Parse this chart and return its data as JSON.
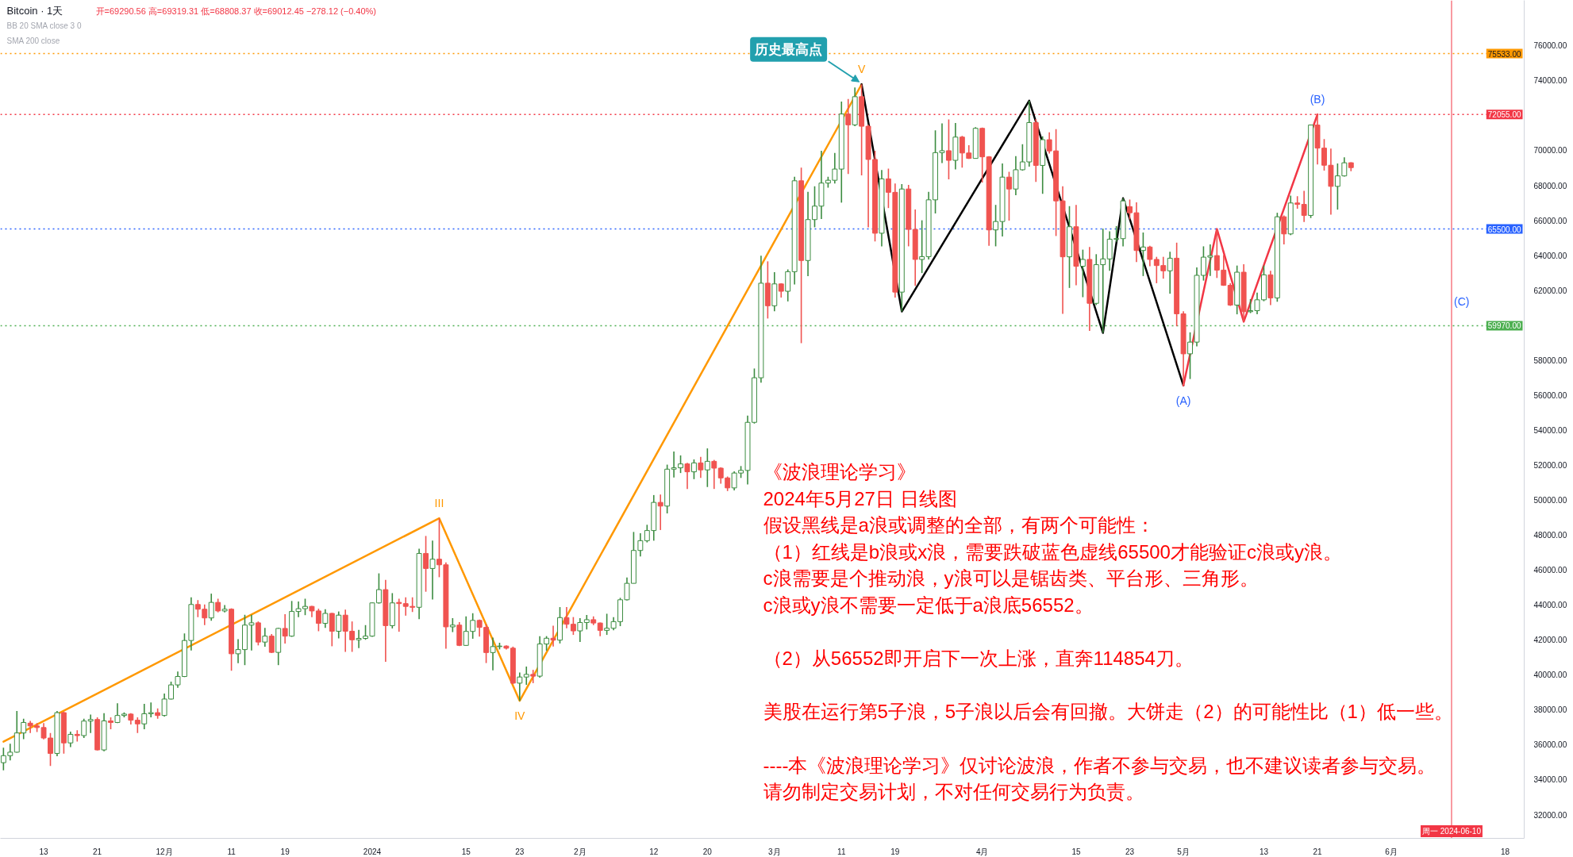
{
  "chart_data": {
    "type": "candlestick",
    "title": "Bitcoin · 1天",
    "subtitle": "开=69290.56 高=69319.31 低=68808.37 收=69012.45 −278.12 (−0.40%)",
    "x": [
      "2023-11-07",
      "2023-11-08",
      "2023-11-09",
      "2023-11-10",
      "2023-11-11",
      "2023-11-12",
      "2023-11-13",
      "2023-11-14",
      "2023-11-15",
      "2023-11-16",
      "2023-11-17",
      "2023-11-18",
      "2023-11-19",
      "2023-11-20",
      "2023-11-21",
      "2023-11-22",
      "2023-11-23",
      "2023-11-24",
      "2023-11-25",
      "2023-11-26",
      "2023-11-27",
      "2023-11-28",
      "2023-11-29",
      "2023-11-30",
      "2023-12-01",
      "2023-12-02",
      "2023-12-03",
      "2023-12-04",
      "2023-12-05",
      "2023-12-06",
      "2023-12-07",
      "2023-12-08",
      "2023-12-09",
      "2023-12-10",
      "2023-12-11",
      "2023-12-12",
      "2023-12-13",
      "2023-12-14",
      "2023-12-15",
      "2023-12-16",
      "2023-12-17",
      "2023-12-18",
      "2023-12-19",
      "2023-12-20",
      "2023-12-21",
      "2023-12-22",
      "2023-12-23",
      "2023-12-24",
      "2023-12-25",
      "2023-12-26",
      "2023-12-27",
      "2023-12-28",
      "2023-12-29",
      "2023-12-30",
      "2023-12-31",
      "2024-01-01",
      "2024-01-02",
      "2024-01-03",
      "2024-01-04",
      "2024-01-05",
      "2024-01-06",
      "2024-01-07",
      "2024-01-08",
      "2024-01-09",
      "2024-01-10",
      "2024-01-11",
      "2024-01-12",
      "2024-01-13",
      "2024-01-14",
      "2024-01-15",
      "2024-01-16",
      "2024-01-17",
      "2024-01-18",
      "2024-01-19",
      "2024-01-20",
      "2024-01-21",
      "2024-01-22",
      "2024-01-23",
      "2024-01-24",
      "2024-01-25",
      "2024-01-26",
      "2024-01-27",
      "2024-01-28",
      "2024-01-29",
      "2024-01-30",
      "2024-01-31",
      "2024-02-01",
      "2024-02-02",
      "2024-02-03",
      "2024-02-04",
      "2024-02-05",
      "2024-02-06",
      "2024-02-07",
      "2024-02-08",
      "2024-02-09",
      "2024-02-10",
      "2024-02-11",
      "2024-02-12",
      "2024-02-13",
      "2024-02-14",
      "2024-02-15",
      "2024-02-16",
      "2024-02-17",
      "2024-02-18",
      "2024-02-19",
      "2024-02-20",
      "2024-02-21",
      "2024-02-22",
      "2024-02-23",
      "2024-02-24",
      "2024-02-25",
      "2024-02-26",
      "2024-02-27",
      "2024-02-28",
      "2024-02-29",
      "2024-03-01",
      "2024-03-02",
      "2024-03-03",
      "2024-03-04",
      "2024-03-05",
      "2024-03-06",
      "2024-03-07",
      "2024-03-08",
      "2024-03-09",
      "2024-03-10",
      "2024-03-11",
      "2024-03-12",
      "2024-03-13",
      "2024-03-14",
      "2024-03-15",
      "2024-03-16",
      "2024-03-17",
      "2024-03-18",
      "2024-03-19",
      "2024-03-20",
      "2024-03-21",
      "2024-03-22",
      "2024-03-23",
      "2024-03-24",
      "2024-03-25",
      "2024-03-26",
      "2024-03-27",
      "2024-03-28",
      "2024-03-29",
      "2024-03-30",
      "2024-03-31",
      "2024-04-01",
      "2024-04-02",
      "2024-04-03",
      "2024-04-04",
      "2024-04-05",
      "2024-04-06",
      "2024-04-07",
      "2024-04-08",
      "2024-04-09",
      "2024-04-10",
      "2024-04-11",
      "2024-04-12",
      "2024-04-13",
      "2024-04-14",
      "2024-04-15",
      "2024-04-16",
      "2024-04-17",
      "2024-04-18",
      "2024-04-19",
      "2024-04-20",
      "2024-04-21",
      "2024-04-22",
      "2024-04-23",
      "2024-04-24",
      "2024-04-25",
      "2024-04-26",
      "2024-04-27",
      "2024-04-28",
      "2024-04-29",
      "2024-04-30",
      "2024-05-01",
      "2024-05-02",
      "2024-05-03",
      "2024-05-04",
      "2024-05-05",
      "2024-05-06",
      "2024-05-07",
      "2024-05-08",
      "2024-05-09",
      "2024-05-10",
      "2024-05-11",
      "2024-05-12",
      "2024-05-13",
      "2024-05-14",
      "2024-05-15",
      "2024-05-16",
      "2024-05-17",
      "2024-05-18",
      "2024-05-19",
      "2024-05-20",
      "2024-05-21",
      "2024-05-22",
      "2024-05-23",
      "2024-05-24",
      "2024-05-25",
      "2024-05-26"
    ],
    "ohlc": [
      [
        34970,
        35830,
        34530,
        35370
      ],
      [
        35370,
        36050,
        35100,
        35570
      ],
      [
        35570,
        37930,
        35540,
        36670
      ],
      [
        36670,
        37480,
        36310,
        37270
      ],
      [
        37230,
        37360,
        36670,
        37070
      ],
      [
        37070,
        37230,
        36720,
        36980
      ],
      [
        36980,
        37230,
        36300,
        36380
      ],
      [
        36380,
        36670,
        34780,
        35500
      ],
      [
        35500,
        37930,
        35340,
        37830
      ],
      [
        37830,
        37880,
        35490,
        36100
      ],
      [
        36100,
        36750,
        35860,
        36590
      ],
      [
        36590,
        36830,
        36180,
        36520
      ],
      [
        36520,
        37480,
        36380,
        37350
      ],
      [
        37350,
        37720,
        36670,
        37440
      ],
      [
        37440,
        37560,
        35670,
        35700
      ],
      [
        35700,
        37800,
        35620,
        37360
      ],
      [
        37360,
        37560,
        36880,
        37270
      ],
      [
        37270,
        38370,
        37230,
        37670
      ],
      [
        37670,
        37850,
        37560,
        37750
      ],
      [
        37750,
        37800,
        37150,
        37400
      ],
      [
        37400,
        37560,
        36670,
        37190
      ],
      [
        37190,
        38330,
        36880,
        37770
      ],
      [
        37770,
        38410,
        37560,
        37830
      ],
      [
        37830,
        38070,
        37480,
        37670
      ],
      [
        37670,
        38930,
        37610,
        38610
      ],
      [
        38610,
        39610,
        38580,
        39420
      ],
      [
        39420,
        40190,
        39250,
        39900
      ],
      [
        39900,
        42360,
        39870,
        41960
      ],
      [
        41960,
        44430,
        41390,
        44020
      ],
      [
        44020,
        44270,
        43300,
        43750
      ],
      [
        43750,
        44020,
        42840,
        43250
      ],
      [
        43250,
        44640,
        43090,
        44140
      ],
      [
        44140,
        44350,
        43570,
        43650
      ],
      [
        43650,
        43990,
        43570,
        43750
      ],
      [
        43750,
        43800,
        40230,
        41200
      ],
      [
        41200,
        42040,
        40660,
        41440
      ],
      [
        41440,
        43430,
        40550,
        42840
      ],
      [
        42840,
        43430,
        41390,
        42970
      ],
      [
        42970,
        43050,
        41680,
        41870
      ],
      [
        41870,
        42680,
        41600,
        42210
      ],
      [
        42210,
        42330,
        41240,
        41280
      ],
      [
        41280,
        42680,
        40550,
        42650
      ],
      [
        42650,
        43460,
        41790,
        42210
      ],
      [
        42210,
        44220,
        42170,
        43620
      ],
      [
        43620,
        44190,
        43300,
        43780
      ],
      [
        43780,
        44350,
        43410,
        43910
      ],
      [
        43910,
        43940,
        43300,
        43650
      ],
      [
        43650,
        43780,
        42490,
        42940
      ],
      [
        42940,
        43750,
        42680,
        43510
      ],
      [
        43510,
        43540,
        41630,
        42490
      ],
      [
        42490,
        43620,
        42080,
        43410
      ],
      [
        43410,
        43730,
        41310,
        42490
      ],
      [
        42490,
        43050,
        41310,
        42000
      ],
      [
        42000,
        42570,
        41520,
        42080
      ],
      [
        42080,
        42840,
        42000,
        42210
      ],
      [
        42210,
        44140,
        42170,
        44110
      ],
      [
        44110,
        45800,
        44070,
        44870
      ],
      [
        44870,
        45430,
        40740,
        42810
      ],
      [
        42810,
        44670,
        42650,
        44110
      ],
      [
        44140,
        44350,
        42460,
        44070
      ],
      [
        44070,
        44430,
        43380,
        43910
      ],
      [
        43910,
        44430,
        43590,
        43860
      ],
      [
        43860,
        47210,
        43180,
        46940
      ],
      [
        46940,
        47940,
        44750,
        46080
      ],
      [
        46080,
        47670,
        44300,
        46610
      ],
      [
        46610,
        48950,
        45580,
        46290
      ],
      [
        46290,
        46430,
        41490,
        42740
      ],
      [
        42740,
        43240,
        42440,
        42840
      ],
      [
        42840,
        43010,
        41640,
        41680
      ],
      [
        41680,
        43340,
        41650,
        42480
      ],
      [
        42480,
        43520,
        42060,
        43110
      ],
      [
        43110,
        43160,
        42180,
        42710
      ],
      [
        42710,
        42890,
        40670,
        41270
      ],
      [
        41270,
        42130,
        40250,
        41610
      ],
      [
        41610,
        41830,
        41450,
        41640
      ],
      [
        41640,
        41680,
        41450,
        41520
      ],
      [
        41520,
        41610,
        39460,
        39520
      ],
      [
        39520,
        40130,
        38510,
        39870
      ],
      [
        39870,
        40470,
        39420,
        40020
      ],
      [
        40020,
        40280,
        39520,
        39920
      ],
      [
        39920,
        42210,
        39830,
        41760
      ],
      [
        41760,
        42210,
        41380,
        42090
      ],
      [
        42090,
        42810,
        41610,
        41980
      ],
      [
        41980,
        43870,
        41790,
        43270
      ],
      [
        43270,
        43870,
        42660,
        42890
      ],
      [
        42890,
        43300,
        42280,
        42510
      ],
      [
        42510,
        43240,
        41880,
        42990
      ],
      [
        42990,
        43420,
        42590,
        43150
      ],
      [
        43150,
        43340,
        42840,
        42960
      ],
      [
        42960,
        42990,
        42210,
        42540
      ],
      [
        42540,
        43490,
        42280,
        42660
      ],
      [
        42660,
        43300,
        42540,
        43040
      ],
      [
        43040,
        44400,
        42780,
        44290
      ],
      [
        44290,
        45560,
        44250,
        45230
      ],
      [
        45230,
        48170,
        45230,
        47110
      ],
      [
        47110,
        48090,
        46770,
        47670
      ],
      [
        47670,
        48580,
        47570,
        48250
      ],
      [
        48250,
        50280,
        47670,
        49860
      ],
      [
        49860,
        50310,
        48280,
        49650
      ],
      [
        49650,
        52020,
        49230,
        51760
      ],
      [
        51760,
        52770,
        51290,
        51840
      ],
      [
        51840,
        52550,
        51540,
        52060
      ],
      [
        52060,
        52120,
        50630,
        51610
      ],
      [
        51610,
        52320,
        51190,
        52120
      ],
      [
        52120,
        52470,
        51260,
        51720
      ],
      [
        51720,
        52950,
        50740,
        52210
      ],
      [
        52210,
        52290,
        50630,
        51820
      ],
      [
        51820,
        51870,
        50930,
        51260
      ],
      [
        51260,
        51340,
        50510,
        50690
      ],
      [
        50690,
        51640,
        50550,
        51540
      ],
      [
        51540,
        51940,
        51260,
        51690
      ],
      [
        51690,
        54830,
        50890,
        54440
      ],
      [
        54440,
        57520,
        54370,
        56990
      ],
      [
        56990,
        63970,
        56710,
        62400
      ],
      [
        62400,
        63650,
        60380,
        61110
      ],
      [
        61110,
        63030,
        60800,
        62360
      ],
      [
        62360,
        62400,
        61580,
        61940
      ],
      [
        61940,
        63190,
        61360,
        63060
      ],
      [
        63060,
        68490,
        62330,
        68260
      ],
      [
        68260,
        69010,
        58970,
        63700
      ],
      [
        63700,
        67630,
        62800,
        66040
      ],
      [
        66040,
        67950,
        65600,
        66810
      ],
      [
        66810,
        69980,
        66070,
        68130
      ],
      [
        68130,
        68490,
        67870,
        68290
      ],
      [
        68290,
        69850,
        68100,
        68930
      ],
      [
        68930,
        72790,
        67010,
        72080
      ],
      [
        72080,
        72940,
        68650,
        71460
      ],
      [
        71460,
        73600,
        71380,
        73070
      ],
      [
        73070,
        73780,
        68570,
        71380
      ],
      [
        71380,
        71460,
        65600,
        69480
      ],
      [
        69480,
        69980,
        64790,
        65260
      ],
      [
        65260,
        68880,
        64510,
        68370
      ],
      [
        68370,
        68960,
        66700,
        67600
      ],
      [
        67600,
        68100,
        61580,
        61890
      ],
      [
        61890,
        68070,
        60780,
        67790
      ],
      [
        67790,
        68020,
        64510,
        65480
      ],
      [
        65480,
        66620,
        62250,
        63760
      ],
      [
        63760,
        66000,
        62980,
        63920
      ],
      [
        63920,
        67630,
        63760,
        67170
      ],
      [
        67170,
        71150,
        66390,
        69870
      ],
      [
        69870,
        71540,
        69270,
        69980
      ],
      [
        69980,
        71770,
        68340,
        69430
      ],
      [
        69430,
        71570,
        68910,
        70760
      ],
      [
        70760,
        70830,
        69010,
        69850
      ],
      [
        69850,
        70290,
        69510,
        69540
      ],
      [
        69540,
        71330,
        69520,
        71260
      ],
      [
        71260,
        71300,
        68160,
        69630
      ],
      [
        69630,
        69670,
        64540,
        65450
      ],
      [
        65450,
        66880,
        64510,
        65930
      ],
      [
        65930,
        69250,
        65070,
        68470
      ],
      [
        68470,
        68770,
        65980,
        67790
      ],
      [
        67790,
        69670,
        67440,
        68890
      ],
      [
        68890,
        70350,
        68840,
        69340
      ],
      [
        69340,
        72840,
        69070,
        71590
      ],
      [
        71590,
        71790,
        68190,
        69140
      ],
      [
        69140,
        70800,
        67510,
        70610
      ],
      [
        70610,
        71030,
        69820,
        69970
      ],
      [
        69970,
        71210,
        65100,
        67110
      ],
      [
        67110,
        67940,
        60650,
        63910
      ],
      [
        63910,
        66810,
        62130,
        65630
      ],
      [
        65630,
        66880,
        62280,
        63370
      ],
      [
        63370,
        64320,
        61600,
        63760
      ],
      [
        63760,
        64470,
        59670,
        61250
      ],
      [
        61250,
        64060,
        61150,
        63460
      ],
      [
        63460,
        65520,
        59560,
        63790
      ],
      [
        63790,
        65370,
        63110,
        64920
      ],
      [
        64920,
        65670,
        64770,
        64950
      ],
      [
        64950,
        67260,
        64510,
        67110
      ],
      [
        66780,
        67180,
        66050,
        66430
      ],
      [
        66430,
        67030,
        63610,
        64270
      ],
      [
        64270,
        65300,
        62810,
        64470
      ],
      [
        64470,
        64540,
        63370,
        63760
      ],
      [
        63760,
        63910,
        62400,
        63410
      ],
      [
        63410,
        63910,
        62660,
        63110
      ],
      [
        63110,
        64200,
        61800,
        63830
      ],
      [
        63830,
        64720,
        59940,
        60650
      ],
      [
        60650,
        60800,
        56552,
        58360
      ],
      [
        58360,
        59590,
        56920,
        59030
      ],
      [
        59030,
        63300,
        58790,
        62850
      ],
      [
        62850,
        64510,
        62550,
        63890
      ],
      [
        63890,
        64620,
        62810,
        63980
      ],
      [
        63980,
        65500,
        62700,
        63150
      ],
      [
        63150,
        64010,
        62250,
        62280
      ],
      [
        62280,
        62400,
        61100,
        61150
      ],
      [
        61150,
        63410,
        60620,
        63030
      ],
      [
        63030,
        63490,
        60200,
        60770
      ],
      [
        60770,
        61490,
        60690,
        60830
      ],
      [
        60830,
        61860,
        60620,
        61450
      ],
      [
        61450,
        63410,
        61370,
        62880
      ],
      [
        62880,
        63110,
        61150,
        61560
      ],
      [
        61560,
        66430,
        61340,
        66200
      ],
      [
        66200,
        66280,
        64620,
        65220
      ],
      [
        65220,
        67410,
        65150,
        66990
      ],
      [
        66990,
        67380,
        66660,
        66910
      ],
      [
        66910,
        67680,
        65900,
        66280
      ],
      [
        66280,
        71480,
        66130,
        71450
      ],
      [
        71450,
        72055,
        69190,
        70130
      ],
      [
        70130,
        70650,
        68840,
        69150
      ],
      [
        69150,
        70100,
        66320,
        67940
      ],
      [
        67940,
        69250,
        66610,
        68540
      ],
      [
        68540,
        69600,
        68500,
        69290
      ],
      [
        69290.56,
        69319.31,
        68808.37,
        69012.45
      ]
    ],
    "colors": [
      "#3c8c40",
      "#3c8c40",
      "#3c8c40",
      "#3c8c40",
      "#f05350",
      "#f05350",
      "#f05350",
      "#f05350",
      "#3c8c40",
      "#f05350",
      "#3c8c40",
      "#f05350",
      "#3c8c40",
      "#3c8c40",
      "#f05350",
      "#3c8c40",
      "#f05350",
      "#3c8c40",
      "#3c8c40",
      "#f05350",
      "#f05350",
      "#3c8c40",
      "#3c8c40",
      "#f05350",
      "#3c8c40",
      "#3c8c40",
      "#3c8c40",
      "#3c8c40",
      "#3c8c40",
      "#f05350",
      "#f05350",
      "#3c8c40",
      "#f05350",
      "#3c8c40",
      "#f05350",
      "#3c8c40",
      "#3c8c40",
      "#3c8c40",
      "#f05350",
      "#3c8c40",
      "#f05350",
      "#3c8c40",
      "#f05350",
      "#3c8c40",
      "#3c8c40",
      "#3c8c40",
      "#f05350",
      "#f05350",
      "#3c8c40",
      "#f05350",
      "#3c8c40",
      "#f05350",
      "#f05350",
      "#3c8c40",
      "#3c8c40",
      "#3c8c40",
      "#3c8c40",
      "#f05350",
      "#3c8c40",
      "#f05350",
      "#f05350",
      "#f05350",
      "#3c8c40",
      "#f05350",
      "#3c8c40",
      "#f05350",
      "#f05350",
      "#3c8c40",
      "#f05350",
      "#3c8c40",
      "#3c8c40",
      "#f05350",
      "#f05350",
      "#3c8c40",
      "#3c8c40",
      "#f05350",
      "#f05350",
      "#3c8c40",
      "#3c8c40",
      "#f05350",
      "#3c8c40",
      "#3c8c40",
      "#f05350",
      "#3c8c40",
      "#f05350",
      "#f05350",
      "#3c8c40",
      "#3c8c40",
      "#f05350",
      "#f05350",
      "#3c8c40",
      "#3c8c40",
      "#3c8c40",
      "#3c8c40",
      "#3c8c40",
      "#3c8c40",
      "#3c8c40",
      "#3c8c40",
      "#f05350",
      "#3c8c40",
      "#3c8c40",
      "#3c8c40",
      "#f05350",
      "#3c8c40",
      "#f05350",
      "#3c8c40",
      "#f05350",
      "#f05350",
      "#f05350",
      "#3c8c40",
      "#3c8c40",
      "#3c8c40",
      "#3c8c40",
      "#3c8c40",
      "#f05350",
      "#3c8c40",
      "#f05350",
      "#3c8c40",
      "#3c8c40",
      "#f05350",
      "#3c8c40",
      "#3c8c40",
      "#3c8c40",
      "#3c8c40",
      "#3c8c40",
      "#3c8c40",
      "#f05350",
      "#3c8c40",
      "#f05350",
      "#f05350",
      "#f05350",
      "#3c8c40",
      "#f05350",
      "#f05350",
      "#3c8c40",
      "#f05350",
      "#f05350",
      "#3c8c40",
      "#3c8c40",
      "#3c8c40",
      "#3c8c40",
      "#f05350",
      "#3c8c40",
      "#f05350",
      "#f05350",
      "#3c8c40",
      "#f05350",
      "#f05350",
      "#3c8c40",
      "#3c8c40",
      "#f05350",
      "#3c8c40",
      "#3c8c40",
      "#3c8c40",
      "#f05350",
      "#3c8c40",
      "#f05350",
      "#f05350",
      "#f05350",
      "#3c8c40",
      "#f05350",
      "#3c8c40",
      "#f05350",
      "#3c8c40",
      "#3c8c40",
      "#3c8c40",
      "#3c8c40",
      "#3c8c40",
      "#f05350",
      "#f05350",
      "#3c8c40",
      "#f05350",
      "#f05350",
      "#f05350",
      "#3c8c40",
      "#f05350",
      "#f05350",
      "#3c8c40",
      "#3c8c40",
      "#3c8c40",
      "#3c8c40",
      "#f05350",
      "#f05350",
      "#f05350",
      "#3c8c40",
      "#f05350",
      "#3c8c40",
      "#3c8c40",
      "#3c8c40",
      "#f05350",
      "#3c8c40",
      "#f05350",
      "#3c8c40",
      "#f05350",
      "#f05350",
      "#3c8c40",
      "#f05350",
      "#f05350",
      "#f05350",
      "#3c8c40",
      "#3c8c40",
      "#f05350"
    ],
    "series": [
      {
        "type": "line",
        "color": "#ff9800",
        "x": [
          "2023-11-07",
          "2024-01-11",
          "2024-01-23",
          "2024-03-14"
        ],
        "values": [
          36170,
          48950,
          38510,
          73780
        ]
      },
      {
        "type": "line",
        "color": "#000000",
        "x": [
          "2024-03-14",
          "2024-03-20",
          "2024-04-08",
          "2024-04-19",
          "2024-04-22",
          "2024-05-01"
        ],
        "values": [
          73780,
          60780,
          72840,
          59560,
          67260,
          56552
        ]
      },
      {
        "type": "line",
        "color": "#f23645",
        "x": [
          "2024-05-01",
          "2024-05-06",
          "2024-05-10",
          "2024-05-21"
        ],
        "values": [
          56552,
          65500,
          60200,
          72055
        ]
      }
    ],
    "xlim": [
      "2023-11-06T13:00",
      "2024-06-20T20:00"
    ],
    "ylim": [
      30640,
      78580
    ],
    "xticks": [
      {
        "value": "2023-11-13",
        "label": "13"
      },
      {
        "value": "2023-11-21",
        "label": "21"
      },
      {
        "value": "2023-12-01",
        "label": "12月"
      },
      {
        "value": "2023-12-11",
        "label": "11"
      },
      {
        "value": "2023-12-19",
        "label": "19"
      },
      {
        "value": "2024-01-01",
        "label": "2024"
      },
      {
        "value": "2024-01-15",
        "label": "15"
      },
      {
        "value": "2024-01-23",
        "label": "23"
      },
      {
        "value": "2024-02-01",
        "label": "2月"
      },
      {
        "value": "2024-02-12",
        "label": "12"
      },
      {
        "value": "2024-02-20",
        "label": "20"
      },
      {
        "value": "2024-03-01",
        "label": "3月"
      },
      {
        "value": "2024-03-11",
        "label": "11"
      },
      {
        "value": "2024-03-19",
        "label": "19"
      },
      {
        "value": "2024-04-01",
        "label": "4月"
      },
      {
        "value": "2024-04-15",
        "label": "15"
      },
      {
        "value": "2024-04-23",
        "label": "23"
      },
      {
        "value": "2024-05-01",
        "label": "5月"
      },
      {
        "value": "2024-05-13",
        "label": "13"
      },
      {
        "value": "2024-05-21",
        "label": "21"
      },
      {
        "value": "2024-06-01",
        "label": "6月"
      },
      {
        "value": "2024-06-18",
        "label": "18"
      }
    ],
    "yticks": [
      {
        "value": 32000,
        "label": "32000.00"
      },
      {
        "value": 34000,
        "label": "34000.00"
      },
      {
        "value": 36000,
        "label": "36000.00"
      },
      {
        "value": 38000,
        "label": "38000.00"
      },
      {
        "value": 40000,
        "label": "40000.00"
      },
      {
        "value": 42000,
        "label": "42000.00"
      },
      {
        "value": 44000,
        "label": "44000.00"
      },
      {
        "value": 46000,
        "label": "46000.00"
      },
      {
        "value": 48000,
        "label": "48000.00"
      },
      {
        "value": 50000,
        "label": "50000.00"
      },
      {
        "value": 52000,
        "label": "52000.00"
      },
      {
        "value": 54000,
        "label": "54000.00"
      },
      {
        "value": 56000,
        "label": "56000.00"
      },
      {
        "value": 58000,
        "label": "58000.00"
      },
      {
        "value": 62000,
        "label": "62000.00"
      },
      {
        "value": 64000,
        "label": "64000.00"
      },
      {
        "value": 66000,
        "label": "66000.00"
      },
      {
        "value": 68000,
        "label": "68000.00"
      },
      {
        "value": 70000,
        "label": "70000.00"
      },
      {
        "value": 74000,
        "label": "74000.00"
      },
      {
        "value": 76000,
        "label": "76000.00"
      }
    ],
    "ref_lines": [
      {
        "axis": "y",
        "value": 75533,
        "label": "75533.00",
        "color": "#ff9800",
        "line_style": "dotted"
      },
      {
        "axis": "y",
        "value": 72055,
        "label": "72055.00",
        "color": "#f23645",
        "line_style": "dotted"
      },
      {
        "axis": "y",
        "value": 65500,
        "label": "65500.00",
        "color": "#2962ff",
        "line_style": "dotted"
      },
      {
        "axis": "y",
        "value": 59970,
        "label": "59970.00",
        "color": "#4caf50",
        "line_style": "dotted"
      },
      {
        "axis": "x",
        "value": "2024-06-10",
        "label": "周一 2024-06-10",
        "color": "#f23645",
        "line_style": "solid"
      }
    ],
    "annotations": [
      "BB 20 SMA close 3 0",
      "SMA 200 close",
      "《波浪理论学习》",
      "2024年5月27日 日线图",
      "假设黑线是a浪或调整的全部，有两个可能性：",
      "（1）红线是b浪或x浪，需要跌破蓝色虚线65500才能验证c浪或y浪。",
      "c浪需要是个推动浪，y浪可以是锯齿类、平台形、三角形。",
      "c浪或y浪不需要一定低于a浪底56552。",
      "（2）从56552即开启下一次上涨，直奔114854刀。",
      "美股在运行第5子浪，5子浪以后会有回撤。大饼走（2）的可能性比（1）低一些。",
      "----本《波浪理论学习》仅讨论波浪，作者不参与交易，也不建议读者参与交易。",
      "请勿制定交易计划，不对任何交易行为负责。",
      {
        "text": "III",
        "x": "2024-01-11",
        "y": 48950
      },
      {
        "text": "IV",
        "x": "2024-01-23",
        "y": 38510
      },
      {
        "text": "V",
        "x": "2024-03-14",
        "y": 73780
      },
      {
        "text": "(A)",
        "x": "2024-05-01",
        "y": 56552
      },
      {
        "text": "(B)",
        "x": "2024-05-21",
        "y": 72055
      },
      {
        "text": "(C)",
        "x": "2024-06-10",
        "y": 61350
      },
      {
        "text": "历史最高点",
        "x": "2024-03-14",
        "y": 73780
      }
    ]
  }
}
